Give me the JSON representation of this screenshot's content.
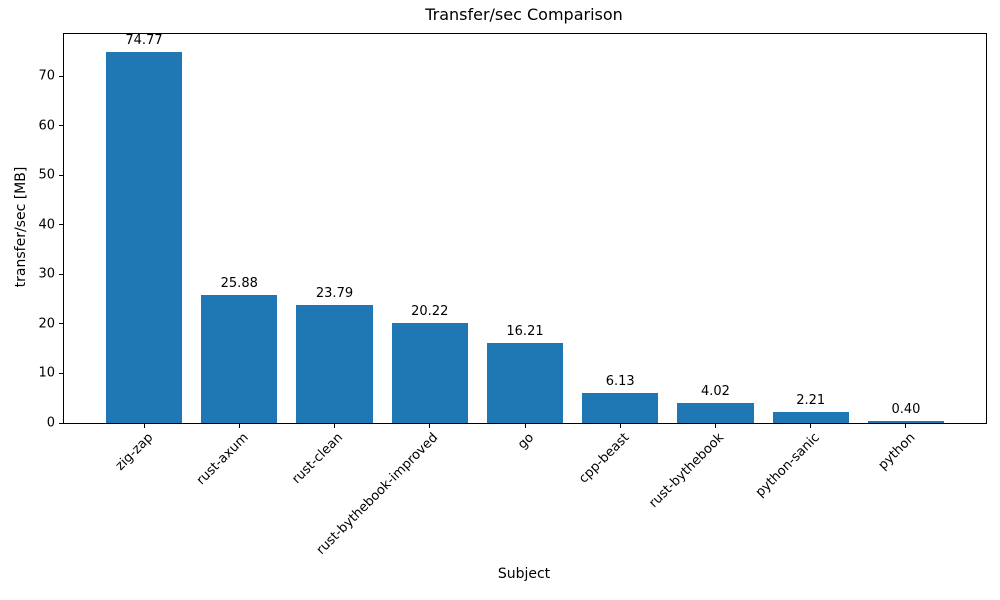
{
  "figure": {
    "background": "#ffffff"
  },
  "chart_data": {
    "type": "bar",
    "title": "Transfer/sec Comparison",
    "xlabel": "Subject",
    "ylabel": "transfer/sec [MB]",
    "categories": [
      "zig-zap",
      "rust-axum",
      "rust-clean",
      "rust-bythebook-improved",
      "go",
      "cpp-beast",
      "rust-bythebook",
      "python-sanic",
      "python"
    ],
    "values": [
      74.77,
      25.88,
      23.79,
      20.22,
      16.21,
      6.13,
      4.02,
      2.21,
      0.4
    ],
    "bar_labels": [
      "74.77",
      "25.88",
      "23.79",
      "20.22",
      "16.21",
      "6.13",
      "4.02",
      "2.21",
      "0.40"
    ],
    "yticks": [
      0,
      10,
      20,
      30,
      40,
      50,
      60,
      70
    ],
    "ylim": [
      0,
      78.5
    ],
    "bar_color": "#1f77b4",
    "grid": false,
    "legend_position": "none",
    "x_tick_rotation_deg": 45
  }
}
